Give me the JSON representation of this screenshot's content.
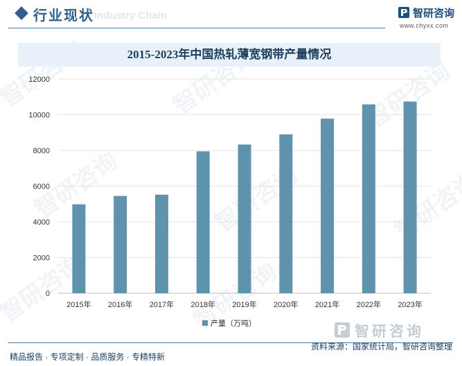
{
  "header": {
    "title": "行业现状",
    "subtitle_en": "Industry Chain"
  },
  "brand": {
    "name": "智研咨询",
    "url": "www.chyxx.com"
  },
  "footer": {
    "left": "精品报告 · 专项定制 · 品质服务 · 专精特新",
    "source": "资料来源：国家统计局，智研咨询整理",
    "brand_name": "智研咨询"
  },
  "watermark_text": "智研咨询",
  "colors": {
    "bar": "#5f93ad",
    "accent": "#2f5f8a",
    "title_bg": "#e8f1f9"
  },
  "chart_data": {
    "type": "bar",
    "title": "2015-2023年中国热轧薄宽钢带产量情况",
    "categories": [
      "2015年",
      "2016年",
      "2017年",
      "2018年",
      "2019年",
      "2020年",
      "2021年",
      "2022年",
      "2023年"
    ],
    "series": [
      {
        "name": "产量（万吨）",
        "values": [
          4980,
          5450,
          5520,
          7950,
          8330,
          8900,
          9780,
          10580,
          10740
        ]
      }
    ],
    "ylim": [
      0,
      12000
    ],
    "yticks": [
      0,
      2000,
      4000,
      6000,
      8000,
      10000,
      12000
    ],
    "grid": true,
    "legend": "bottom"
  }
}
